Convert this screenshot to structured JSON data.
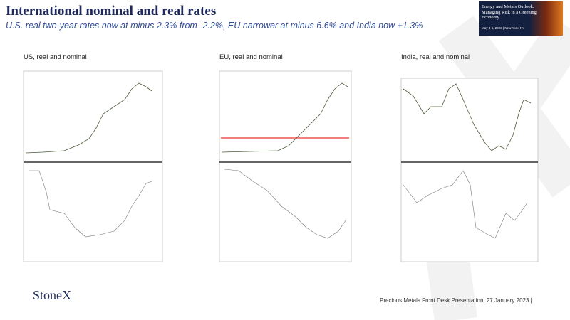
{
  "header": {
    "title": "International nominal and real rates",
    "subtitle": "U.S. real two-year rates now at minus 2.3% from -2.2%, EU narrower at minus 6.6% and India now +1.3%"
  },
  "banner": {
    "title": "Energy and Metals Outlook: Managing Risk in a Greening Economy",
    "date": "May 3-5, 2023 | New York, NY"
  },
  "panels": [
    {
      "label": "US, real and nominal"
    },
    {
      "label": "EU, real and nominal"
    },
    {
      "label": "India, real and nominal"
    }
  ],
  "footer": {
    "logo": "StoneX",
    "note": "Precious Metals Front Desk Presentation, 27 January 2023 |"
  }
}
